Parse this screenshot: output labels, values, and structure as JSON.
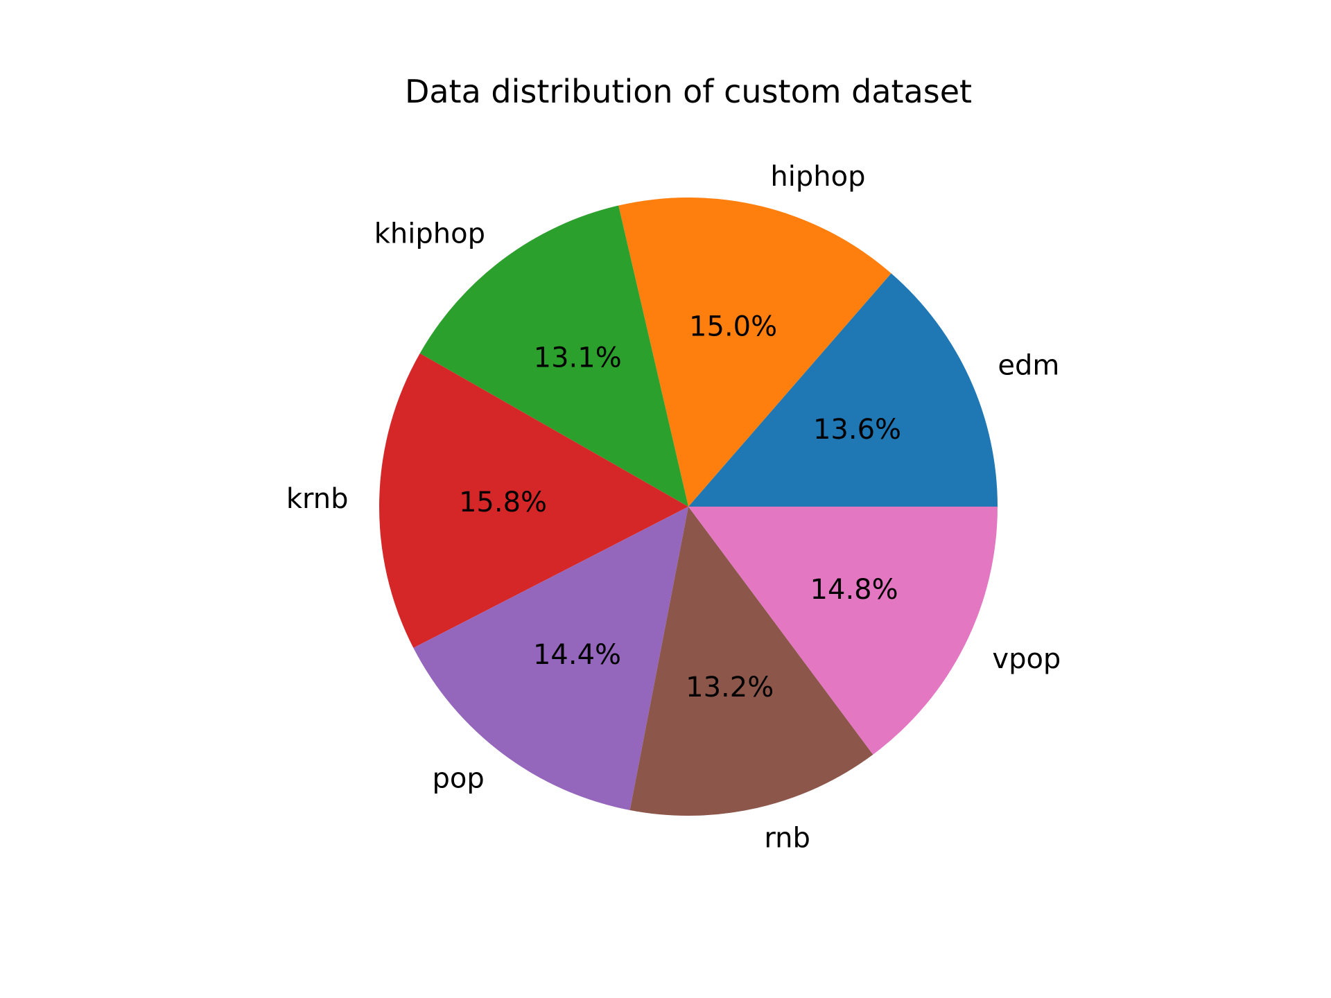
{
  "chart_data": {
    "type": "pie",
    "title": "Data distribution of custom dataset",
    "categories": [
      "edm",
      "hiphop",
      "khiphop",
      "krnb",
      "pop",
      "rnb",
      "vpop"
    ],
    "values": [
      13.6,
      15.0,
      13.1,
      15.8,
      14.4,
      13.2,
      14.8
    ],
    "pct_labels": [
      "13.6%",
      "15.0%",
      "13.1%",
      "15.8%",
      "14.4%",
      "13.2%",
      "14.8%"
    ],
    "colors": [
      "#1f77b4",
      "#ff7f0e",
      "#2ca02c",
      "#d62728",
      "#9467bd",
      "#8c564b",
      "#e377c2"
    ],
    "start_angle": 0,
    "direction": "counterclockwise"
  }
}
